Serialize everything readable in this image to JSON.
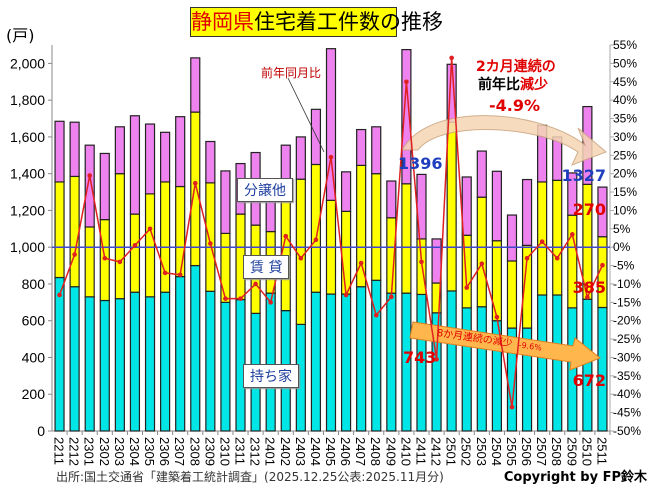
{
  "chart_data": {
    "type": "bar",
    "stacked": true,
    "title": "静岡県住宅着工件数の推移",
    "title_highlight": "静岡県",
    "title_rest": "住宅着工件数の推移",
    "ylabel": "(戸)",
    "ylim": [
      0,
      2100
    ],
    "y_ticks": [
      "0",
      "200",
      "400",
      "600",
      "800",
      "1,000",
      "1,200",
      "1,400",
      "1,600",
      "1,800",
      "2,000"
    ],
    "y2lim": [
      -50,
      55
    ],
    "y2_ticks": [
      "-50%",
      "-45%",
      "-40%",
      "-35%",
      "-30%",
      "-25%",
      "-20%",
      "-15%",
      "-10%",
      "-5%",
      "0%",
      "5%",
      "10%",
      "15%",
      "20%",
      "25%",
      "30%",
      "35%",
      "40%",
      "45%",
      "50%",
      "55%"
    ],
    "categories": [
      "2211",
      "2212",
      "2301",
      "2302",
      "2303",
      "2304",
      "2305",
      "2306",
      "2307",
      "2308",
      "2309",
      "2310",
      "2311",
      "2312",
      "2401",
      "2402",
      "2403",
      "2404",
      "2405",
      "2406",
      "2407",
      "2408",
      "2409",
      "2410",
      "2411",
      "2412",
      "2501",
      "2502",
      "2503",
      "2504",
      "2505",
      "2506",
      "2507",
      "2508",
      "2509",
      "2510",
      "2511"
    ],
    "series": [
      {
        "name": "持ち家",
        "color": "#00e5e5",
        "values": [
          835,
          785,
          730,
          710,
          720,
          755,
          730,
          755,
          840,
          900,
          760,
          700,
          715,
          640,
          750,
          655,
          580,
          755,
          745,
          745,
          785,
          820,
          750,
          750,
          743,
          643,
          762,
          670,
          676,
          600,
          560,
          560,
          740,
          740,
          670,
          717,
          672
        ]
      },
      {
        "name": "賃 貸",
        "color": "#ffff00",
        "values": [
          520,
          600,
          380,
          440,
          680,
          425,
          560,
          600,
          490,
          835,
          590,
          375,
          465,
          480,
          335,
          600,
          790,
          695,
          510,
          450,
          660,
          580,
          410,
          595,
          302,
          162,
          918,
          395,
          596,
          435,
          365,
          450,
          615,
          624,
          504,
          625,
          385
        ]
      },
      {
        "name": "分譲他",
        "color": "#ee82ee",
        "values": [
          330,
          295,
          445,
          360,
          255,
          535,
          380,
          270,
          380,
          295,
          225,
          340,
          275,
          395,
          245,
          300,
          230,
          300,
          825,
          215,
          195,
          255,
          200,
          730,
          351,
          240,
          315,
          317,
          251,
          378,
          250,
          358,
          308,
          236,
          230,
          423,
          270
        ]
      }
    ],
    "line_series": {
      "name": "前年同月比",
      "color": "#e02020",
      "axis": "right",
      "values": [
        -13,
        -2,
        19.5,
        -3,
        -4,
        0.5,
        5,
        -7,
        -7.5,
        17.4,
        1,
        -14,
        -14,
        -10,
        -15,
        3,
        -3,
        2,
        24.5,
        -13,
        -4.3,
        -18.5,
        -13.5,
        45,
        -4,
        -30.5,
        51.5,
        -11,
        -4.5,
        -19,
        -43.5,
        -3,
        1.5,
        -3,
        3.5,
        -13.6,
        -4.9
      ]
    },
    "annotations": {
      "yoy_label": "前年同月比",
      "two_month_1": "2カ月連続の",
      "two_month_2a": "前年比",
      "two_month_2b": "減少",
      "two_month_3": "-4.9%",
      "label_1396": "1396",
      "label_1327": "1327",
      "label_270": "270",
      "label_385": "385",
      "label_743": "743",
      "label_672": "672",
      "eight_month": "8か月連続の減少",
      "eight_month_pct": "-9.6%"
    },
    "legend_placement": "inline-labels",
    "grid": false,
    "zero_line_color": "#3f48cc"
  },
  "footer": {
    "source": "出所:国土交通省「建築着工統計調査」(2025.12.25公表:2025.11月分)",
    "copyright": "Copyright by FP鈴木"
  }
}
